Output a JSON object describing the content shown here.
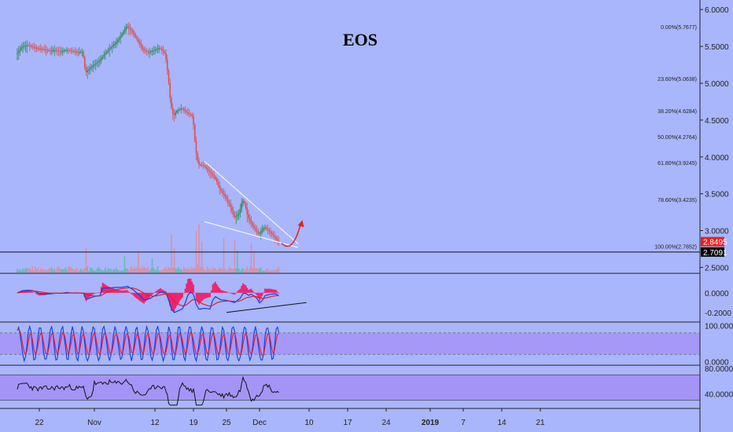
{
  "chart_data": {
    "type": "candlestick",
    "title": "EOS",
    "x_ticks": [
      {
        "label": "22",
        "day": -10
      },
      {
        "label": "Nov",
        "day": 0
      },
      {
        "label": "12",
        "day": 11
      },
      {
        "label": "19",
        "day": 18
      },
      {
        "label": "25",
        "day": 24
      },
      {
        "label": "Dec",
        "day": 30
      },
      {
        "label": "10",
        "day": 39
      },
      {
        "label": "17",
        "day": 46
      },
      {
        "label": "24",
        "day": 53
      },
      {
        "label": "2019",
        "day": 61
      },
      {
        "label": "7",
        "day": 67
      },
      {
        "label": "14",
        "day": 74
      },
      {
        "label": "21",
        "day": 81
      }
    ],
    "price_axis": {
      "ticks": [
        "6.0000",
        "5.5000",
        "5.0000",
        "4.5000",
        "4.0000",
        "3.5000",
        "3.0000",
        "2.5000"
      ],
      "tick_values": [
        6.0,
        5.5,
        5.0,
        4.5,
        4.0,
        3.5,
        3.0,
        2.5
      ],
      "range": [
        2.43,
        6.13
      ]
    },
    "current_price": {
      "label": "2.8495",
      "value": 2.8495,
      "color": "#e8201c"
    },
    "support_level": {
      "label": "2.7091",
      "value": 2.7091
    },
    "fibonacci": [
      {
        "label": "0.00%(5.7677)",
        "value": 5.7677
      },
      {
        "label": "23.60%(5.0638)",
        "value": 5.0638
      },
      {
        "label": "38.20%(4.6284)",
        "value": 4.6284
      },
      {
        "label": "50.00%(4.2764)",
        "value": 4.2764
      },
      {
        "label": "61.80%(3.9245)",
        "value": 3.9245
      },
      {
        "label": "78.60%(3.4235)",
        "value": 3.4235
      },
      {
        "label": "100.00%(2.7852)",
        "value": 2.7852
      }
    ],
    "price_path": [
      [
        -14,
        5.4
      ],
      [
        -13,
        5.5
      ],
      [
        -12,
        5.52
      ],
      [
        -11,
        5.49
      ],
      [
        -10,
        5.47
      ],
      [
        -9,
        5.46
      ],
      [
        -8,
        5.44
      ],
      [
        -7,
        5.45
      ],
      [
        -6,
        5.43
      ],
      [
        -5,
        5.45
      ],
      [
        -4,
        5.44
      ],
      [
        -3,
        5.42
      ],
      [
        -2,
        5.43
      ],
      [
        -1.5,
        5.14
      ],
      [
        -1,
        5.18
      ],
      [
        0,
        5.25
      ],
      [
        1,
        5.3
      ],
      [
        2,
        5.4
      ],
      [
        3,
        5.48
      ],
      [
        4,
        5.55
      ],
      [
        5,
        5.65
      ],
      [
        6,
        5.78
      ],
      [
        7,
        5.7
      ],
      [
        8,
        5.58
      ],
      [
        9,
        5.45
      ],
      [
        10,
        5.42
      ],
      [
        11,
        5.45
      ],
      [
        12,
        5.48
      ],
      [
        13,
        5.4
      ],
      [
        13.5,
        5.1
      ],
      [
        14,
        4.7
      ],
      [
        14.5,
        4.55
      ],
      [
        15,
        4.62
      ],
      [
        16,
        4.66
      ],
      [
        17,
        4.6
      ],
      [
        18,
        4.55
      ],
      [
        18.5,
        4.1
      ],
      [
        19,
        3.9
      ],
      [
        20,
        3.88
      ],
      [
        21,
        3.8
      ],
      [
        22,
        3.72
      ],
      [
        23,
        3.55
      ],
      [
        24,
        3.45
      ],
      [
        25,
        3.3
      ],
      [
        25.5,
        3.18
      ],
      [
        26,
        3.2
      ],
      [
        26.5,
        3.25
      ],
      [
        27,
        3.42
      ],
      [
        27.5,
        3.35
      ],
      [
        28,
        3.18
      ],
      [
        29,
        3.05
      ],
      [
        30,
        2.95
      ],
      [
        31,
        3.05
      ],
      [
        32,
        2.98
      ],
      [
        33,
        2.9
      ],
      [
        33.5,
        2.85
      ]
    ],
    "price_trendlines": [
      {
        "name": "upper",
        "from": [
          20,
          3.94
        ],
        "to": [
          37,
          2.82
        ]
      },
      {
        "name": "lower",
        "from": [
          20,
          3.12
        ],
        "to": [
          37,
          2.77
        ]
      }
    ],
    "projection": {
      "from": [
        34,
        2.83
      ],
      "via": [
        36,
        2.82
      ],
      "to": [
        37.5,
        3.1
      ],
      "color": "#e8201c"
    },
    "volume": {
      "axis_value_range": [
        0,
        1
      ],
      "spikes": [
        [
          14,
          0.75
        ],
        [
          14.5,
          0.55
        ],
        [
          18.5,
          0.65
        ],
        [
          19,
          0.9
        ],
        [
          19.5,
          0.5
        ],
        [
          23.5,
          0.65
        ],
        [
          25.5,
          0.55
        ],
        [
          26,
          0.35
        ],
        [
          28.5,
          0.45
        ],
        [
          29,
          0.4
        ],
        [
          -1.5,
          0.38
        ],
        [
          5.5,
          0.3
        ],
        [
          8,
          0.28
        ],
        [
          10.5,
          0.3
        ]
      ]
    },
    "macd": {
      "ticks": [
        "0.0000",
        "-0.2000"
      ],
      "tick_values": [
        0.0,
        -0.2
      ],
      "range": [
        -0.29,
        0.19
      ]
    },
    "stochastic": {
      "ticks": [
        "100.0000",
        "0.0000"
      ],
      "tick_values": [
        100,
        0
      ],
      "range": [
        -8,
        108
      ],
      "band": [
        20,
        80
      ]
    },
    "rsi": {
      "ticks": [
        "80.0000",
        "40.0000"
      ],
      "tick_values": [
        80,
        40
      ],
      "range": [
        18,
        84
      ],
      "band": [
        30,
        70
      ]
    },
    "colors": {
      "background": "#a9b6fc",
      "candle_up": "#2e8b57",
      "candle_down": "#d9534f",
      "macd_line": "#1040d8",
      "signal_line": "#e81c2c",
      "histogram": "#f0206a",
      "band_fill": "#a48ef6",
      "rsi_line": "#111111"
    }
  }
}
